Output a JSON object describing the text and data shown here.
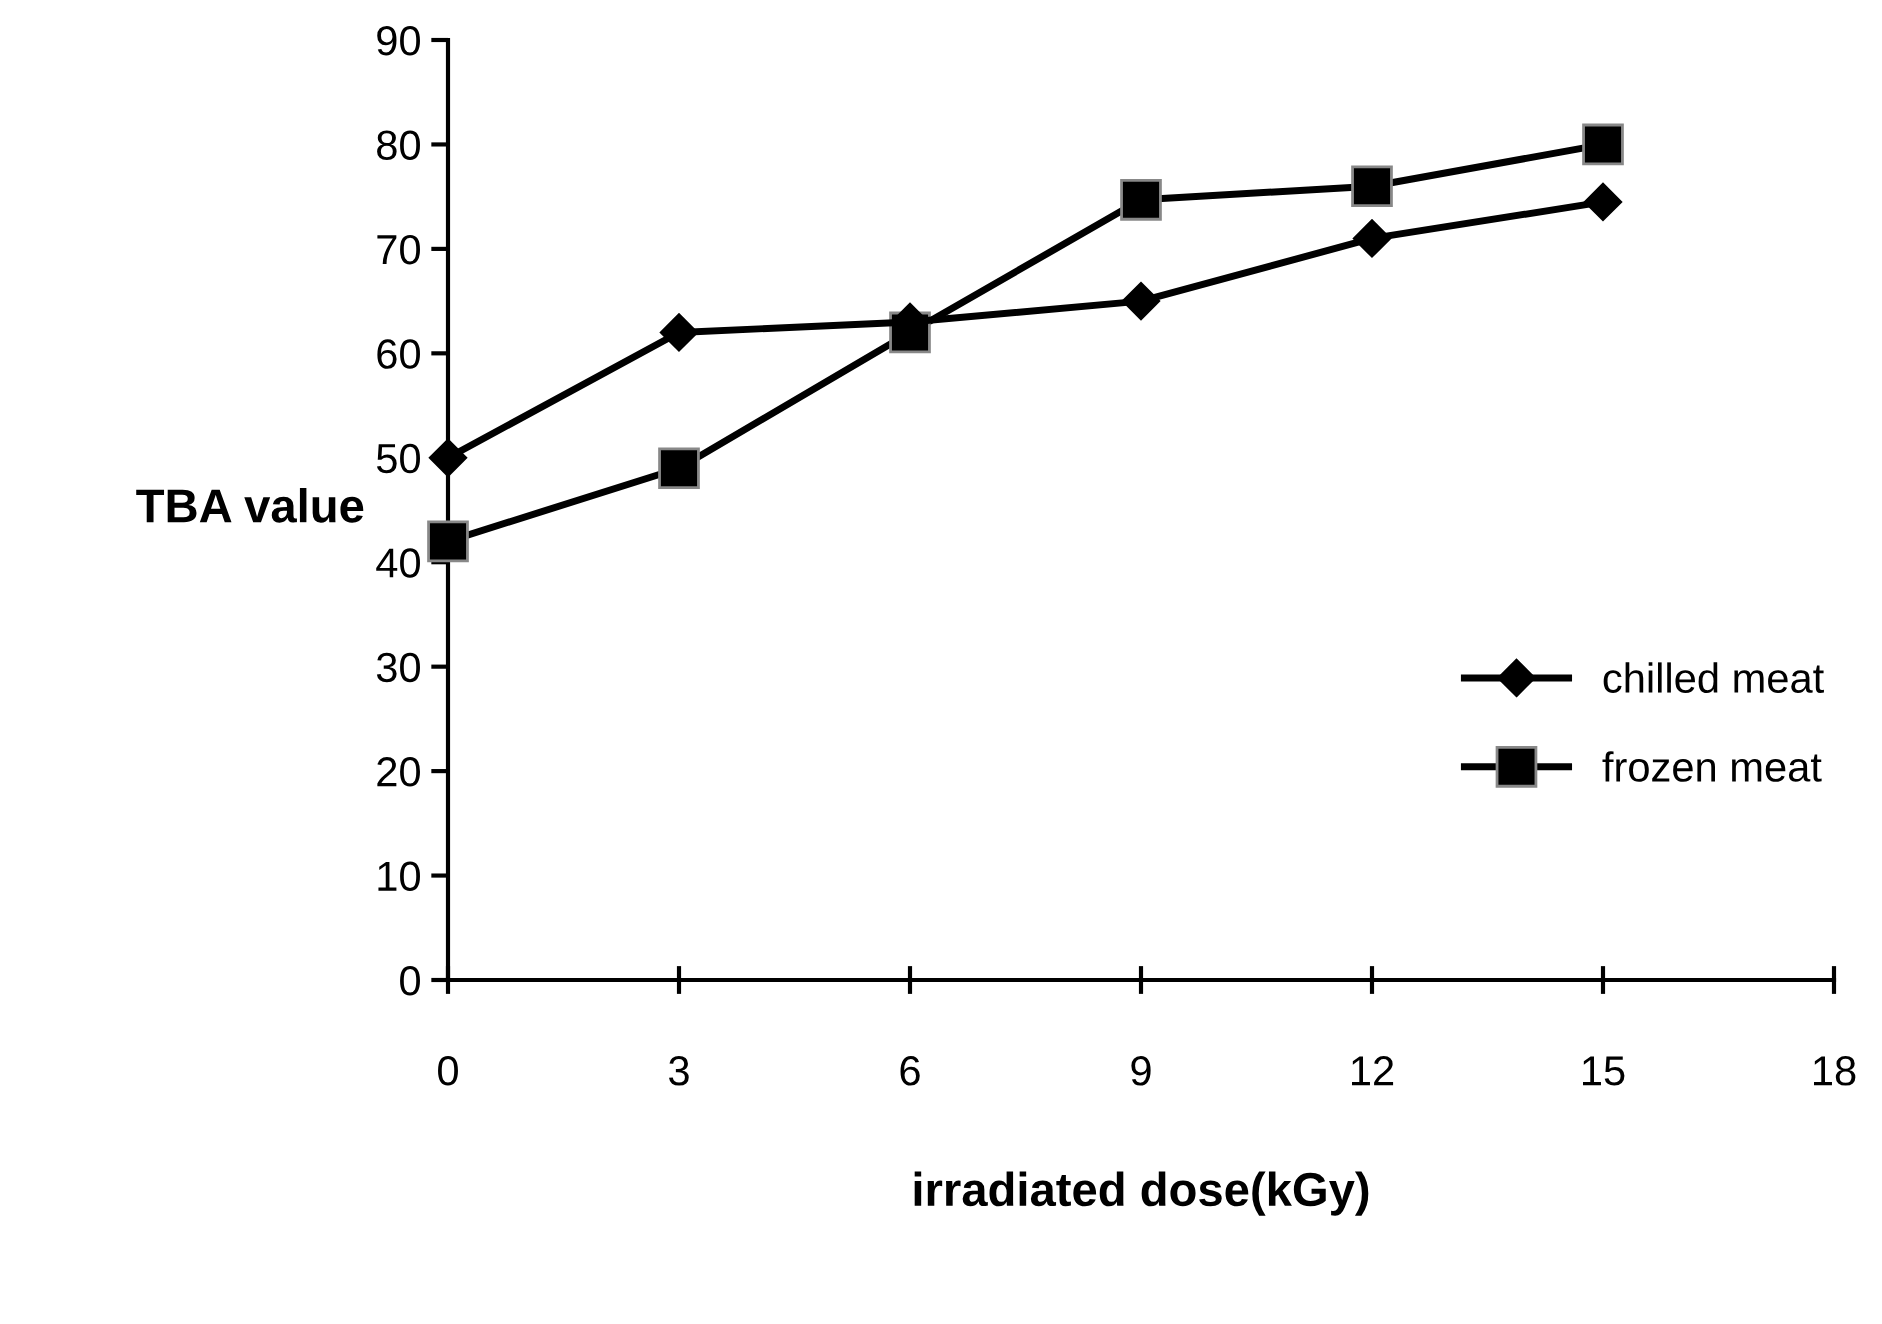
{
  "chart_data": {
    "type": "line",
    "xlabel": "irradiated dose(kGy)",
    "ylabel": "TBA value",
    "x": [
      0,
      3,
      6,
      9,
      12,
      15
    ],
    "series": [
      {
        "name": "chilled meat",
        "color": "#000000",
        "marker": "diamond",
        "values": [
          50,
          62,
          63,
          65,
          71,
          74.5
        ]
      },
      {
        "name": "frozen meat",
        "color": "#000000",
        "marker": "square",
        "values": [
          42,
          49,
          62,
          74.7,
          76,
          80
        ]
      }
    ],
    "xlim": [
      0,
      18
    ],
    "xticks": [
      0,
      3,
      6,
      9,
      12,
      15,
      18
    ],
    "ylim": [
      0,
      90
    ],
    "yticks": [
      0,
      10,
      20,
      30,
      40,
      50,
      60,
      70,
      80,
      90
    ],
    "grid": false,
    "legend": "right",
    "line_style": "solid"
  }
}
